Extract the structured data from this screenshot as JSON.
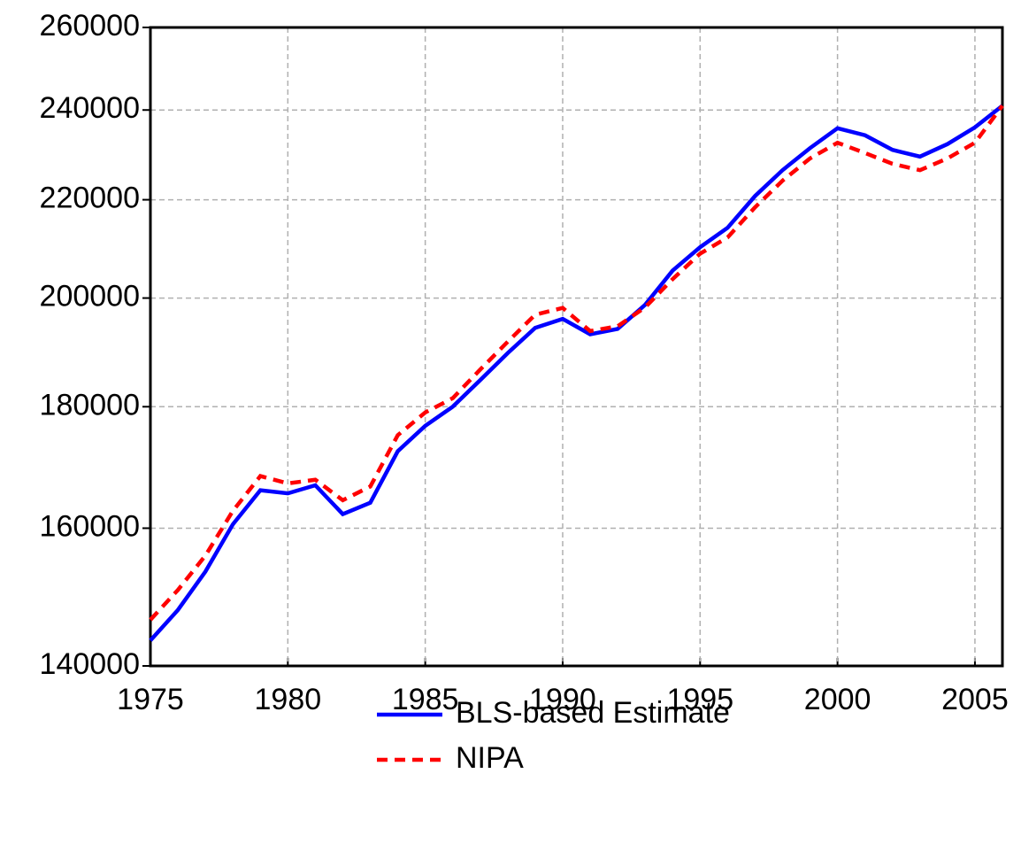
{
  "chart_data": {
    "type": "line",
    "x": [
      1975,
      1976,
      1977,
      1978,
      1979,
      1980,
      1981,
      1982,
      1983,
      1984,
      1985,
      1986,
      1987,
      1988,
      1989,
      1990,
      1991,
      1992,
      1993,
      1994,
      1995,
      1996,
      1997,
      1998,
      1999,
      2000,
      2001,
      2002,
      2003,
      2004,
      2005,
      2006
    ],
    "series": [
      {
        "name": "BLS-based Estimate",
        "color": "#0000ff",
        "line_style": "solid",
        "values": [
          143500,
          147800,
          153400,
          160600,
          166000,
          165500,
          166800,
          162200,
          164000,
          172400,
          176700,
          180000,
          184700,
          189600,
          194300,
          196000,
          193100,
          194100,
          198700,
          205400,
          210100,
          214100,
          220800,
          226400,
          231300,
          235800,
          234200,
          230900,
          229400,
          232200,
          236000,
          241000
        ]
      },
      {
        "name": "NIPA",
        "color": "#ff0000",
        "line_style": "dashed",
        "values": [
          146400,
          150700,
          155800,
          162700,
          168300,
          167100,
          167700,
          164400,
          166600,
          175100,
          179000,
          181500,
          186600,
          191700,
          196800,
          198100,
          193700,
          194600,
          198200,
          203700,
          208800,
          212100,
          218400,
          224100,
          229000,
          232500,
          230200,
          227800,
          226400,
          229000,
          232500,
          241000
        ]
      }
    ],
    "xlim": [
      1975,
      2006
    ],
    "xticks": [
      1975,
      1980,
      1985,
      1990,
      1995,
      2000,
      2005
    ],
    "ylim": [
      140000,
      260000
    ],
    "yticks": [
      140000,
      160000,
      180000,
      200000,
      220000,
      240000,
      260000
    ],
    "y_log_scale": true,
    "grid": true,
    "legend": "bottom"
  }
}
